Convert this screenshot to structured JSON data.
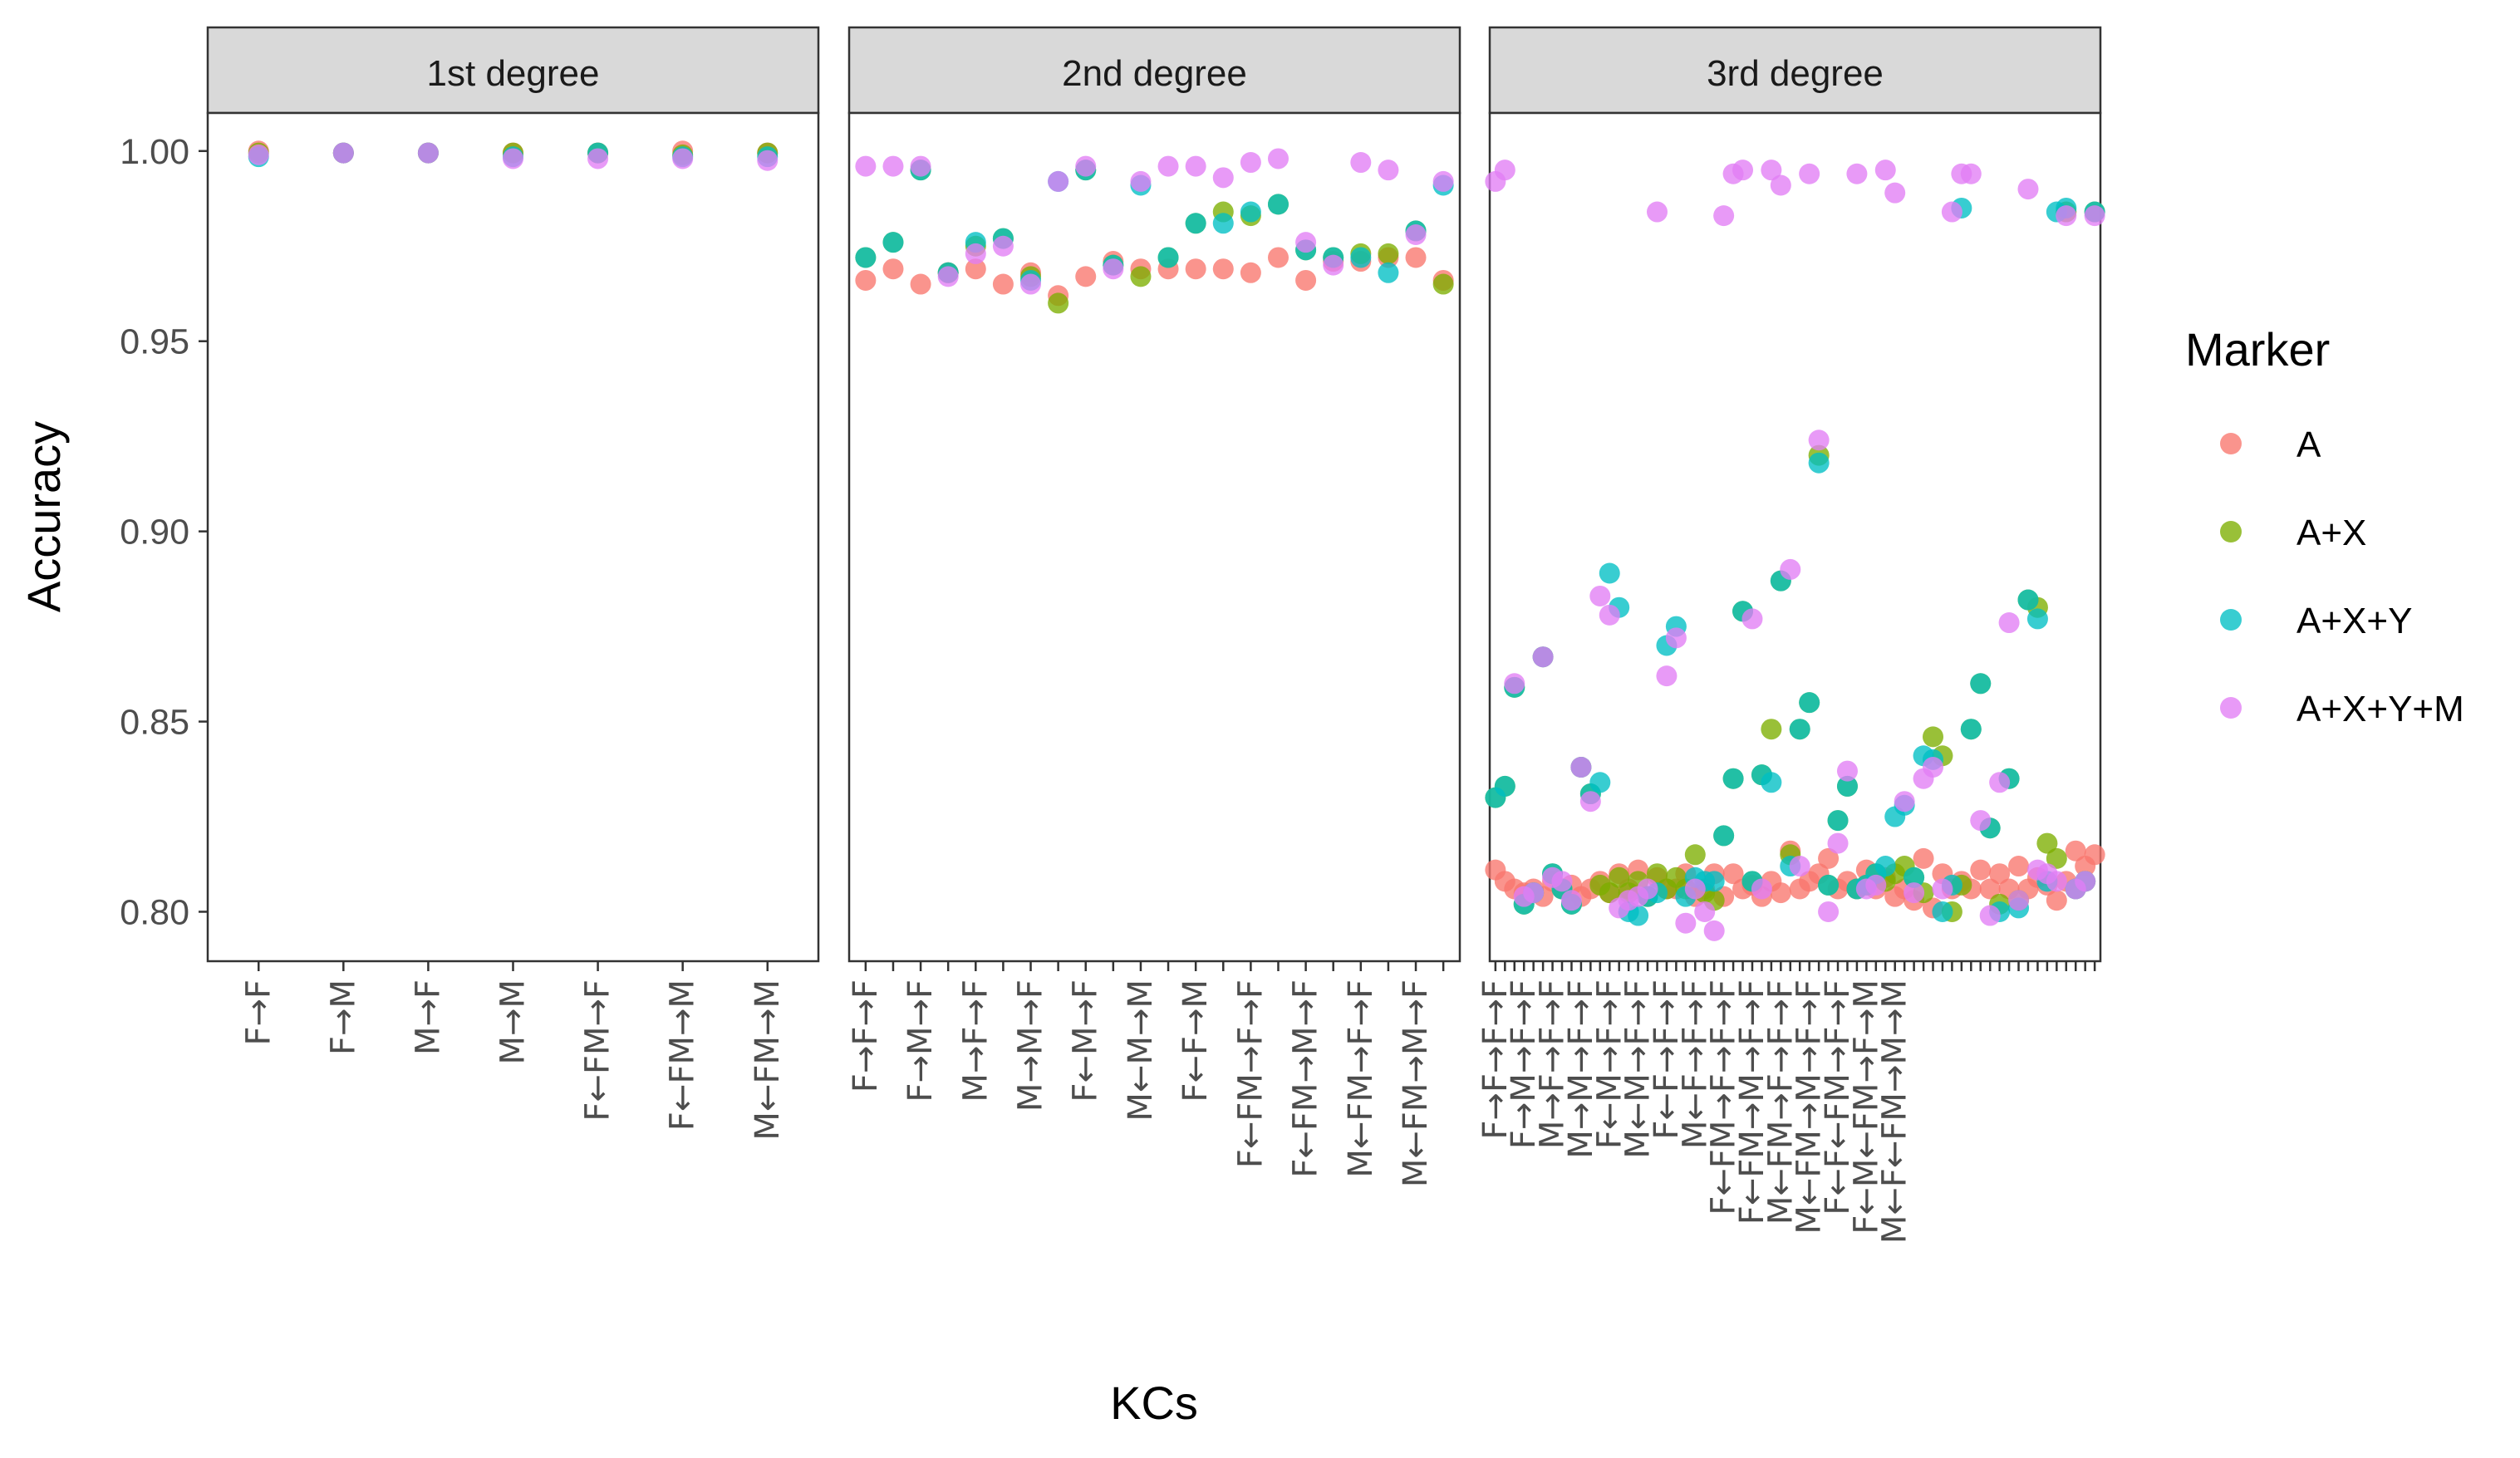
{
  "chart_data": {
    "type": "scatter",
    "ylabel": "Accuracy",
    "xlabel": "KCs",
    "ylim": [
      0.787,
      1.01
    ],
    "yticks": [
      0.8,
      0.85,
      0.9,
      0.95,
      1.0
    ],
    "ytick_labels": [
      "0.80",
      "0.85",
      "0.90",
      "0.95",
      "1.00"
    ],
    "grid": false,
    "legend": {
      "title": "Marker",
      "position": "right",
      "entries": [
        {
          "name": "A",
          "color": "#F8766D"
        },
        {
          "name": "A+X",
          "color": "#7CAE00"
        },
        {
          "name": "A+X+Y",
          "color": "#00BFC4"
        },
        {
          "name": "A+X+Y+M",
          "color": "#E27DF5"
        }
      ]
    },
    "panels": [
      {
        "title": "1st degree",
        "n_categories": 7,
        "categories": [
          "F→F",
          "F→M",
          "M→F",
          "M→M",
          "F←FM→F",
          "F←FM→M",
          "M←FM→M"
        ],
        "labels": [
          {
            "pos": 1,
            "text": "F→F"
          },
          {
            "pos": 2,
            "text": "F→M"
          },
          {
            "pos": 3,
            "text": "M→F"
          },
          {
            "pos": 4,
            "text": "M→M"
          },
          {
            "pos": 5,
            "text": "F←FM→F"
          },
          {
            "pos": 6,
            "text": "F←FM→M"
          },
          {
            "pos": 7,
            "text": "M←FM→M"
          }
        ],
        "series": [
          {
            "name": "A",
            "values": [
              1.0,
              0.9995,
              0.9995,
              0.9995,
              0.9995,
              1.0,
              0.9995
            ]
          },
          {
            "name": "A+X",
            "values": [
              0.9995,
              0.9995,
              0.9995,
              0.9995,
              0.9995,
              0.999,
              0.9995
            ]
          },
          {
            "name": "A+X+Y",
            "values": [
              0.9985,
              0.9995,
              0.9995,
              0.9985,
              0.9995,
              0.9985,
              0.9985
            ]
          },
          {
            "name": "A+X+Y+M",
            "values": [
              0.999,
              0.9995,
              0.9995,
              0.998,
              0.998,
              0.998,
              0.9975
            ]
          }
        ]
      },
      {
        "title": "2nd degree",
        "n_categories": 22,
        "labels": [
          {
            "pos": 1,
            "text": "F→F→F"
          },
          {
            "pos": 3,
            "text": "F→M→F"
          },
          {
            "pos": 5,
            "text": "M→F→F"
          },
          {
            "pos": 7,
            "text": "M→M→F"
          },
          {
            "pos": 9,
            "text": "F←M→F"
          },
          {
            "pos": 11,
            "text": "M←M→M"
          },
          {
            "pos": 13,
            "text": "F←F→M"
          },
          {
            "pos": 15,
            "text": "F←FM→F→F"
          },
          {
            "pos": 17,
            "text": "F←FM→M→F"
          },
          {
            "pos": 19,
            "text": "M←FM→F→F"
          },
          {
            "pos": 21,
            "text": "M←FM→M→F"
          }
        ],
        "series": [
          {
            "name": "A",
            "values": [
              0.966,
              0.969,
              0.965,
              0.968,
              0.969,
              0.965,
              0.968,
              0.962,
              0.967,
              0.971,
              0.969,
              0.969,
              0.969,
              0.969,
              0.968,
              0.972,
              0.966,
              0.971,
              0.971,
              0.972,
              0.972,
              0.966
            ]
          },
          {
            "name": "A+X",
            "values": [
              0.972,
              0.976,
              0.995,
              0.968,
              0.975,
              0.977,
              0.967,
              0.96,
              0.995,
              0.97,
              0.967,
              0.972,
              0.981,
              0.984,
              0.983,
              0.986,
              0.974,
              0.972,
              0.973,
              0.973,
              0.979,
              0.965
            ]
          },
          {
            "name": "A+X+Y",
            "values": [
              0.972,
              0.976,
              0.995,
              0.968,
              0.976,
              0.977,
              0.966,
              0.992,
              0.995,
              0.97,
              0.991,
              0.972,
              0.981,
              0.981,
              0.984,
              0.986,
              0.974,
              0.972,
              0.972,
              0.968,
              0.979,
              0.991
            ]
          },
          {
            "name": "A+X+Y+M",
            "values": [
              0.996,
              0.996,
              0.996,
              0.967,
              0.973,
              0.975,
              0.965,
              0.992,
              0.996,
              0.969,
              0.992,
              0.996,
              0.996,
              0.993,
              0.997,
              0.998,
              0.976,
              0.97,
              0.997,
              0.995,
              0.978,
              0.992
            ]
          }
        ]
      },
      {
        "title": "3rd degree",
        "n_categories": 64,
        "labels": [
          {
            "pos": 1,
            "text": "F→F→F→F"
          },
          {
            "pos": 4,
            "text": "F→M→F→F"
          },
          {
            "pos": 7,
            "text": "M→F→F→F"
          },
          {
            "pos": 10,
            "text": "M→M→F→F"
          },
          {
            "pos": 13,
            "text": "F←M→F→F"
          },
          {
            "pos": 16,
            "text": "M←M→F→F"
          },
          {
            "pos": 19,
            "text": "F←F→F→F"
          },
          {
            "pos": 22,
            "text": "M←F→F→F"
          },
          {
            "pos": 25,
            "text": "F←FM→F→F→F"
          },
          {
            "pos": 28,
            "text": "F←FM→M→F→F"
          },
          {
            "pos": 31,
            "text": "M←FM→F→F→F"
          },
          {
            "pos": 34,
            "text": "M←FM→M→F→F"
          },
          {
            "pos": 37,
            "text": "F←F←FM→F→F"
          },
          {
            "pos": 40,
            "text": "F←M←FM→F→M"
          },
          {
            "pos": 43,
            "text": "M←F←FM→M→M"
          }
        ],
        "series": [
          {
            "name": "A",
            "values": [
              0.811,
              0.808,
              0.806,
              0.805,
              0.806,
              0.804,
              0.808,
              0.806,
              0.807,
              0.804,
              0.806,
              0.808,
              0.805,
              0.81,
              0.806,
              0.811,
              0.804,
              0.809,
              0.806,
              0.806,
              0.81,
              0.804,
              0.806,
              0.81,
              0.804,
              0.81,
              0.806,
              0.807,
              0.804,
              0.808,
              0.805,
              0.816,
              0.806,
              0.808,
              0.81,
              0.814,
              0.806,
              0.808,
              0.806,
              0.811,
              0.806,
              0.809,
              0.804,
              0.806,
              0.803,
              0.814,
              0.801,
              0.81,
              0.806,
              0.808,
              0.806,
              0.811,
              0.806,
              0.81,
              0.806,
              0.812,
              0.806,
              0.809,
              0.807,
              0.803,
              0.808,
              0.816,
              0.812,
              0.815
            ]
          },
          {
            "name": "A+X",
            "values": [
              0.83,
              0.833,
              0.859,
              0.802,
              0.805,
              0.867,
              0.81,
              0.806,
              0.802,
              0.838,
              0.831,
              0.807,
              0.805,
              0.809,
              0.805,
              0.808,
              0.804,
              0.81,
              0.806,
              0.809,
              0.806,
              0.815,
              0.805,
              0.803,
              0.82,
              0.835,
              0.879,
              0.808,
              0.836,
              0.848,
              0.887,
              0.815,
              0.848,
              0.855,
              0.92,
              0.807,
              0.824,
              0.833,
              0.806,
              0.807,
              0.81,
              0.808,
              0.81,
              0.812,
              0.809,
              0.805,
              0.846,
              0.841,
              0.8,
              0.807,
              0.848,
              0.86,
              0.822,
              0.802,
              0.835,
              0.803,
              0.882,
              0.88,
              0.818,
              0.814,
              0.984,
              0.806,
              0.808,
              0.984
            ]
          },
          {
            "name": "A+X+Y",
            "values": [
              0.83,
              0.833,
              0.859,
              0.802,
              0.805,
              0.867,
              0.81,
              0.806,
              0.802,
              0.838,
              0.831,
              0.834,
              0.889,
              0.88,
              0.8,
              0.799,
              0.804,
              0.805,
              0.87,
              0.875,
              0.804,
              0.809,
              0.808,
              0.808,
              0.82,
              0.835,
              0.879,
              0.808,
              0.836,
              0.834,
              0.887,
              0.812,
              0.848,
              0.855,
              0.918,
              0.807,
              0.824,
              0.833,
              0.806,
              0.807,
              0.81,
              0.812,
              0.825,
              0.828,
              0.809,
              0.841,
              0.84,
              0.8,
              0.807,
              0.985,
              0.848,
              0.86,
              0.822,
              0.8,
              0.835,
              0.801,
              0.882,
              0.877,
              0.808,
              0.984,
              0.985,
              0.806,
              0.808,
              0.984
            ]
          },
          {
            "name": "A+X+Y+M",
            "values": [
              0.992,
              0.995,
              0.86,
              0.804,
              0.805,
              0.867,
              0.809,
              0.808,
              0.803,
              0.838,
              0.829,
              0.883,
              0.878,
              0.801,
              0.803,
              0.804,
              0.806,
              0.984,
              0.862,
              0.872,
              0.797,
              0.806,
              0.8,
              0.795,
              0.983,
              0.994,
              0.995,
              0.877,
              0.806,
              0.995,
              0.991,
              0.89,
              0.812,
              0.994,
              0.924,
              0.8,
              0.818,
              0.837,
              0.994,
              0.806,
              0.807,
              0.995,
              0.989,
              0.829,
              0.805,
              0.835,
              0.838,
              0.806,
              0.984,
              0.994,
              0.994,
              0.824,
              0.799,
              0.834,
              0.876,
              0.803,
              0.99,
              0.811,
              0.81,
              0.808,
              0.983,
              0.806,
              0.808,
              0.983
            ]
          }
        ]
      }
    ]
  }
}
